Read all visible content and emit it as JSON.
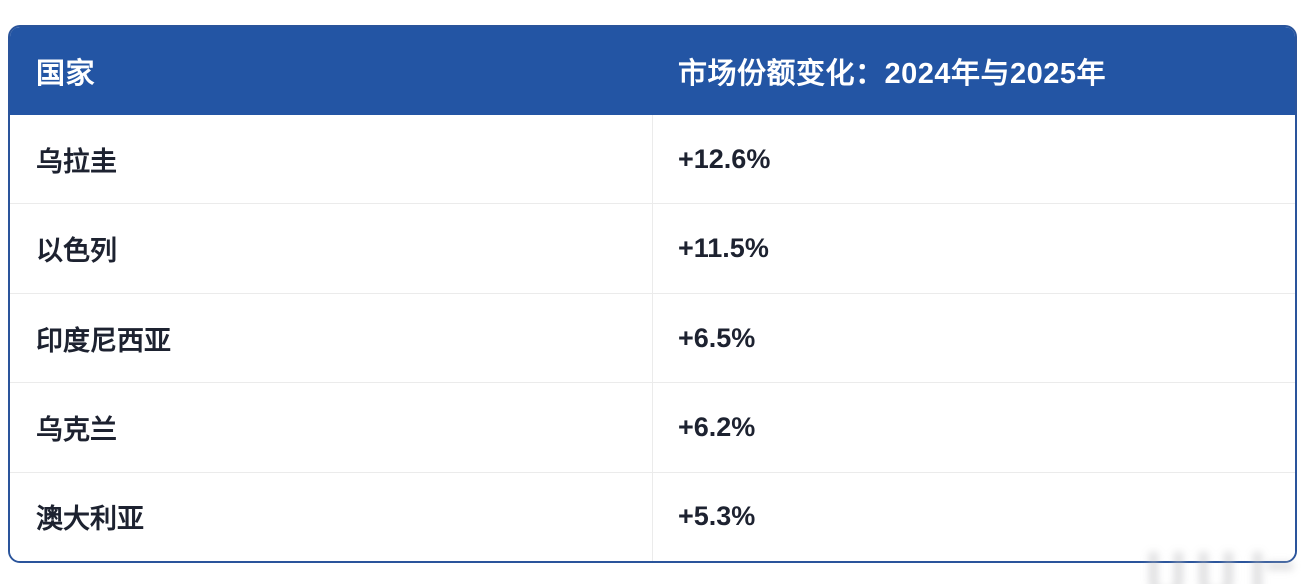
{
  "table": {
    "columns": [
      {
        "label": "国家"
      },
      {
        "label": "市场份额变化：2024年与2025年"
      }
    ],
    "rows": [
      {
        "country": "乌拉圭",
        "change": "+12.6%"
      },
      {
        "country": "以色列",
        "change": "+11.5%"
      },
      {
        "country": "印度尼西亚",
        "change": "+6.5%"
      },
      {
        "country": "乌克兰",
        "change": "+6.2%"
      },
      {
        "country": "澳大利亚",
        "change": "+5.3%"
      }
    ]
  },
  "colors": {
    "header_bg": "#2355a4",
    "card_border": "#2a549b",
    "row_divider": "#ebebeb",
    "header_text": "#ffffff",
    "body_text": "#1d2230",
    "page_bg": "#ffffff"
  },
  "chart_data": {
    "type": "table",
    "title": "市场份额变化：2024年与2025年",
    "columns": [
      "国家",
      "市场份额变化：2024年与2025年"
    ],
    "categories": [
      "乌拉圭",
      "以色列",
      "印度尼西亚",
      "乌克兰",
      "澳大利亚"
    ],
    "values": [
      12.6,
      11.5,
      6.5,
      6.2,
      5.3
    ],
    "value_labels": [
      "+12.6%",
      "+11.5%",
      "+6.5%",
      "+6.2%",
      "+5.3%"
    ],
    "unit": "%"
  }
}
